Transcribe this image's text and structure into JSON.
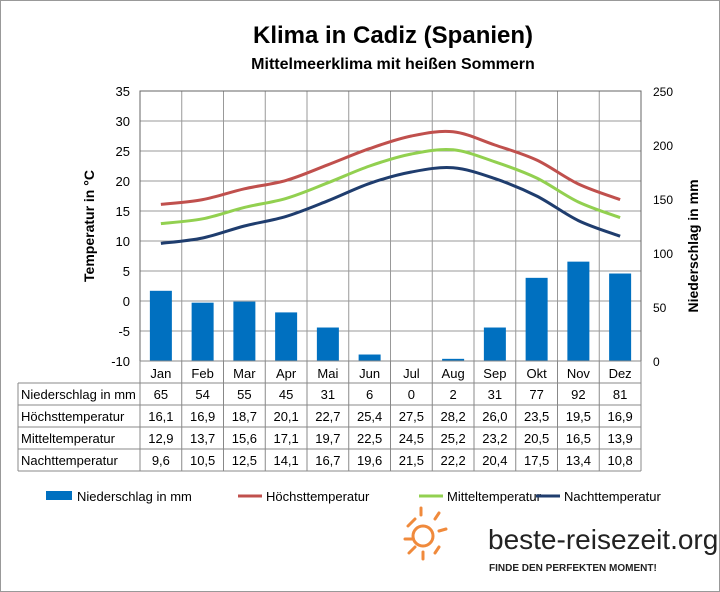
{
  "chart_data": {
    "type": "bar+line",
    "title": "Klima in Cadiz (Spanien)",
    "subtitle": "Mittelmeerklima mit heißen Sommern",
    "ylabel_left": "Temperatur in °C",
    "ylabel_right": "Niederschlag in mm",
    "ylim_left": [
      -10,
      35
    ],
    "yticks_left": [
      -10,
      -5,
      0,
      5,
      10,
      15,
      20,
      25,
      30,
      35
    ],
    "ylim_right": [
      0,
      250
    ],
    "yticks_right": [
      0,
      50,
      100,
      150,
      200,
      250
    ],
    "grid": true,
    "legend_placement": "bottom",
    "categories": [
      "Jan",
      "Feb",
      "Mar",
      "Apr",
      "Mai",
      "Jun",
      "Jul",
      "Aug",
      "Sep",
      "Okt",
      "Nov",
      "Dez"
    ],
    "series": [
      {
        "name": "Niederschlag in mm",
        "type": "bar",
        "axis": "right",
        "color": "#0070c0",
        "values": [
          65,
          54,
          55,
          45,
          31,
          6,
          0,
          2,
          31,
          77,
          92,
          81
        ],
        "labels": [
          "65",
          "54",
          "55",
          "45",
          "31",
          "6",
          "0",
          "2",
          "31",
          "77",
          "92",
          "81"
        ]
      },
      {
        "name": "Höchsttemperatur",
        "type": "line",
        "axis": "left",
        "color": "#c0504d",
        "values": [
          16.1,
          16.9,
          18.7,
          20.1,
          22.7,
          25.4,
          27.5,
          28.2,
          26.0,
          23.5,
          19.5,
          16.9
        ],
        "labels": [
          "16,1",
          "16,9",
          "18,7",
          "20,1",
          "22,7",
          "25,4",
          "27,5",
          "28,2",
          "26,0",
          "23,5",
          "19,5",
          "16,9"
        ]
      },
      {
        "name": "Mitteltemperatur",
        "type": "line",
        "axis": "left",
        "color": "#92d050",
        "values": [
          12.9,
          13.7,
          15.6,
          17.1,
          19.7,
          22.5,
          24.5,
          25.2,
          23.2,
          20.5,
          16.5,
          13.9
        ],
        "labels": [
          "12,9",
          "13,7",
          "15,6",
          "17,1",
          "19,7",
          "22,5",
          "24,5",
          "25,2",
          "23,2",
          "20,5",
          "16,5",
          "13,9"
        ]
      },
      {
        "name": "Nachttemperatur",
        "type": "line",
        "axis": "left",
        "color": "#1f3d6e",
        "values": [
          9.6,
          10.5,
          12.5,
          14.1,
          16.7,
          19.6,
          21.5,
          22.2,
          20.4,
          17.5,
          13.4,
          10.8
        ],
        "labels": [
          "9,6",
          "10,5",
          "12,5",
          "14,1",
          "16,7",
          "19,6",
          "21,5",
          "22,2",
          "20,4",
          "17,5",
          "13,4",
          "10,8"
        ]
      }
    ]
  },
  "logo": {
    "name": "beste-reisezeit.org",
    "slogan": "FINDE DEN PERFEKTEN MOMENT!",
    "color": "#f08a3c"
  }
}
